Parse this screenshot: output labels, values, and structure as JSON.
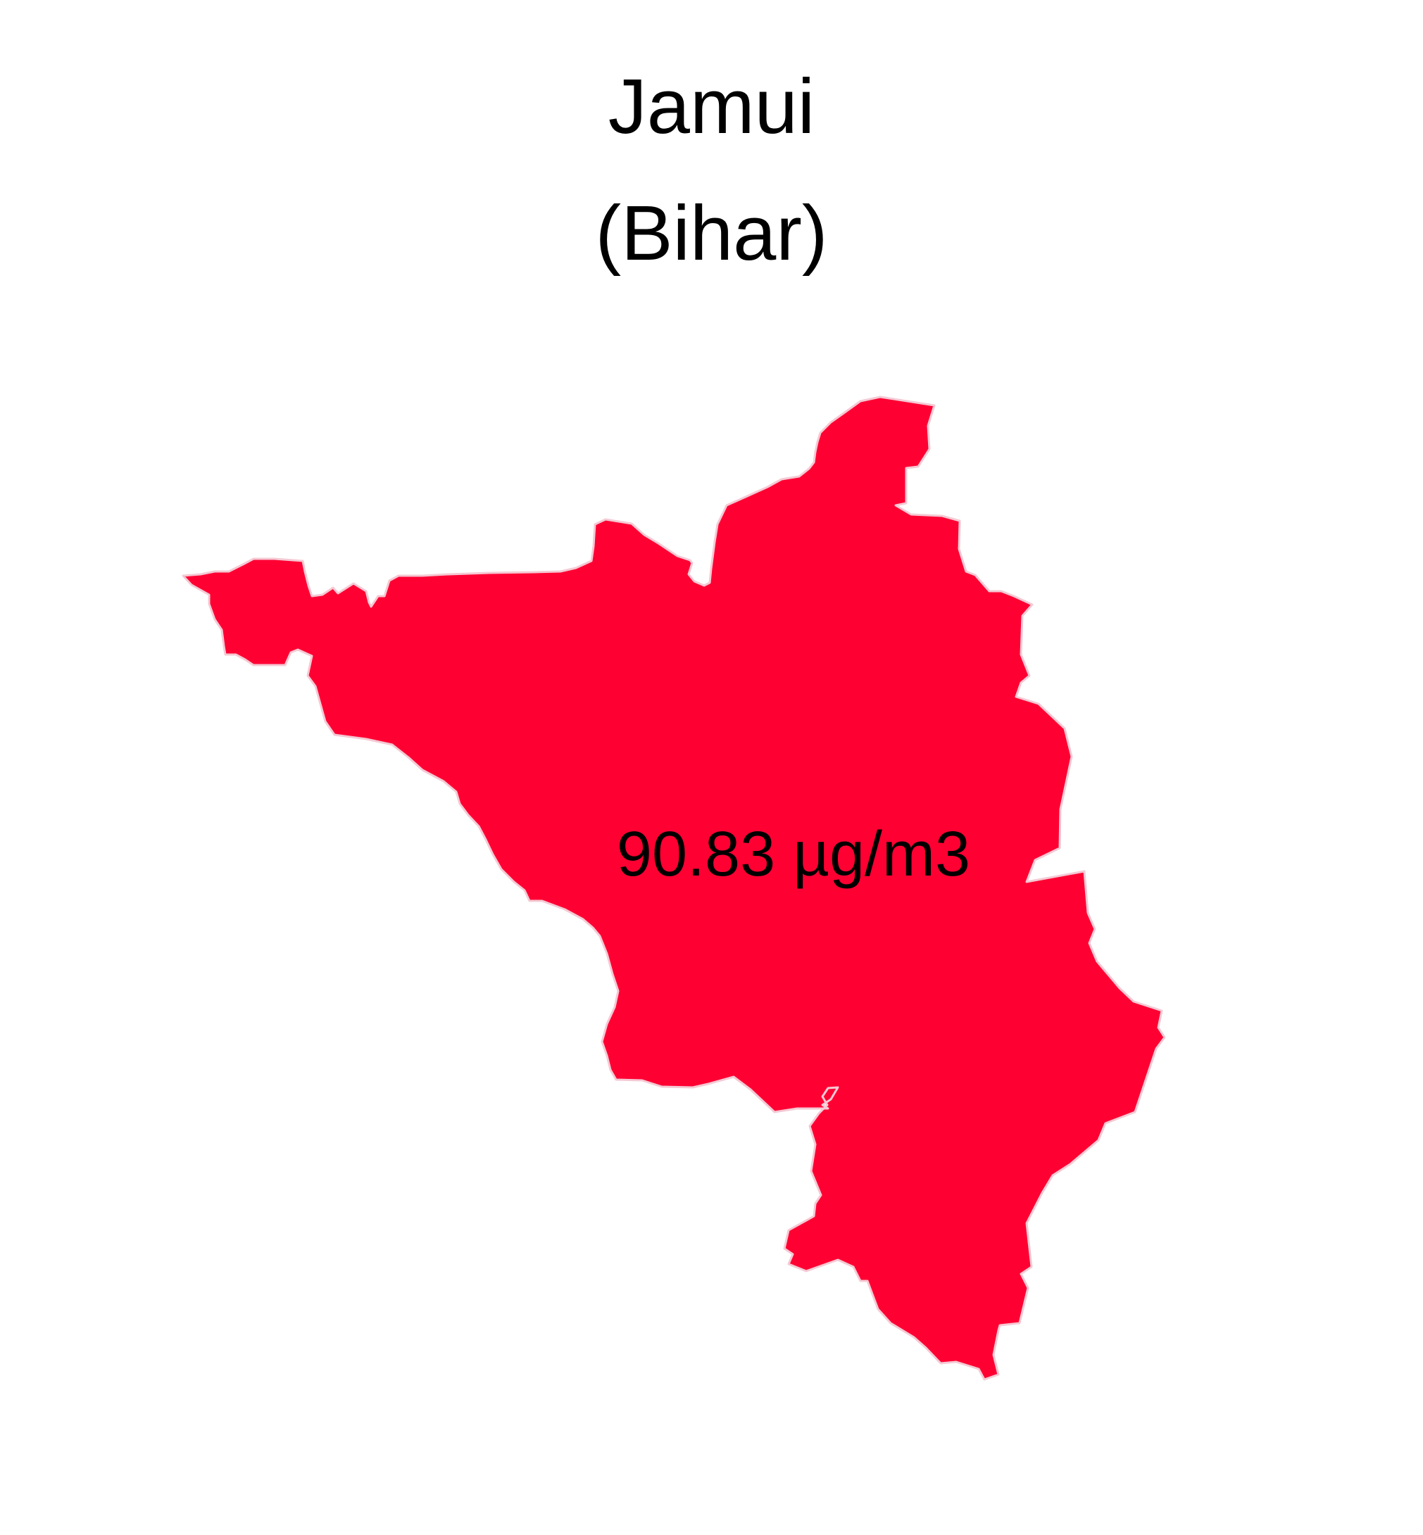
{
  "map": {
    "district": "Jamui",
    "state": "(Bihar)",
    "value_label": "90.83 µg/m3",
    "fill_color": "#FF0033",
    "border_color": "#F4C9D3",
    "background_color": "#FFFFFF"
  }
}
